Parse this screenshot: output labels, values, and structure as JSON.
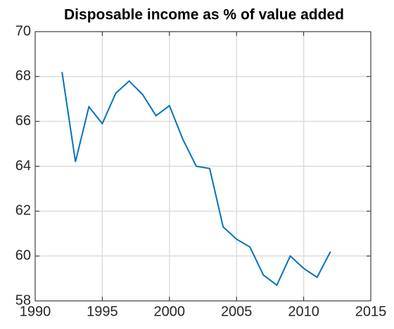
{
  "chart_data": {
    "type": "line",
    "title": "Disposable income as % of value added",
    "x": [
      1992,
      1993,
      1994,
      1995,
      1996,
      1997,
      1998,
      1999,
      2000,
      2001,
      2002,
      2003,
      2004,
      2005,
      2006,
      2007,
      2008,
      2009,
      2010,
      2011,
      2012
    ],
    "series": [
      {
        "color": "#0072bd",
        "values": [
          68.2,
          64.2,
          66.65,
          65.9,
          67.25,
          67.8,
          67.2,
          66.25,
          66.7,
          65.2,
          64.0,
          63.9,
          61.3,
          60.75,
          60.4,
          59.15,
          58.7,
          60.0,
          59.45,
          59.05,
          60.2
        ]
      }
    ],
    "xlim": [
      1990,
      2015
    ],
    "xticks": [
      1990,
      1995,
      2000,
      2005,
      2010,
      2015
    ],
    "ylim": [
      58,
      70
    ],
    "yticks": [
      58,
      60,
      62,
      64,
      66,
      68,
      70
    ],
    "grid": true
  }
}
